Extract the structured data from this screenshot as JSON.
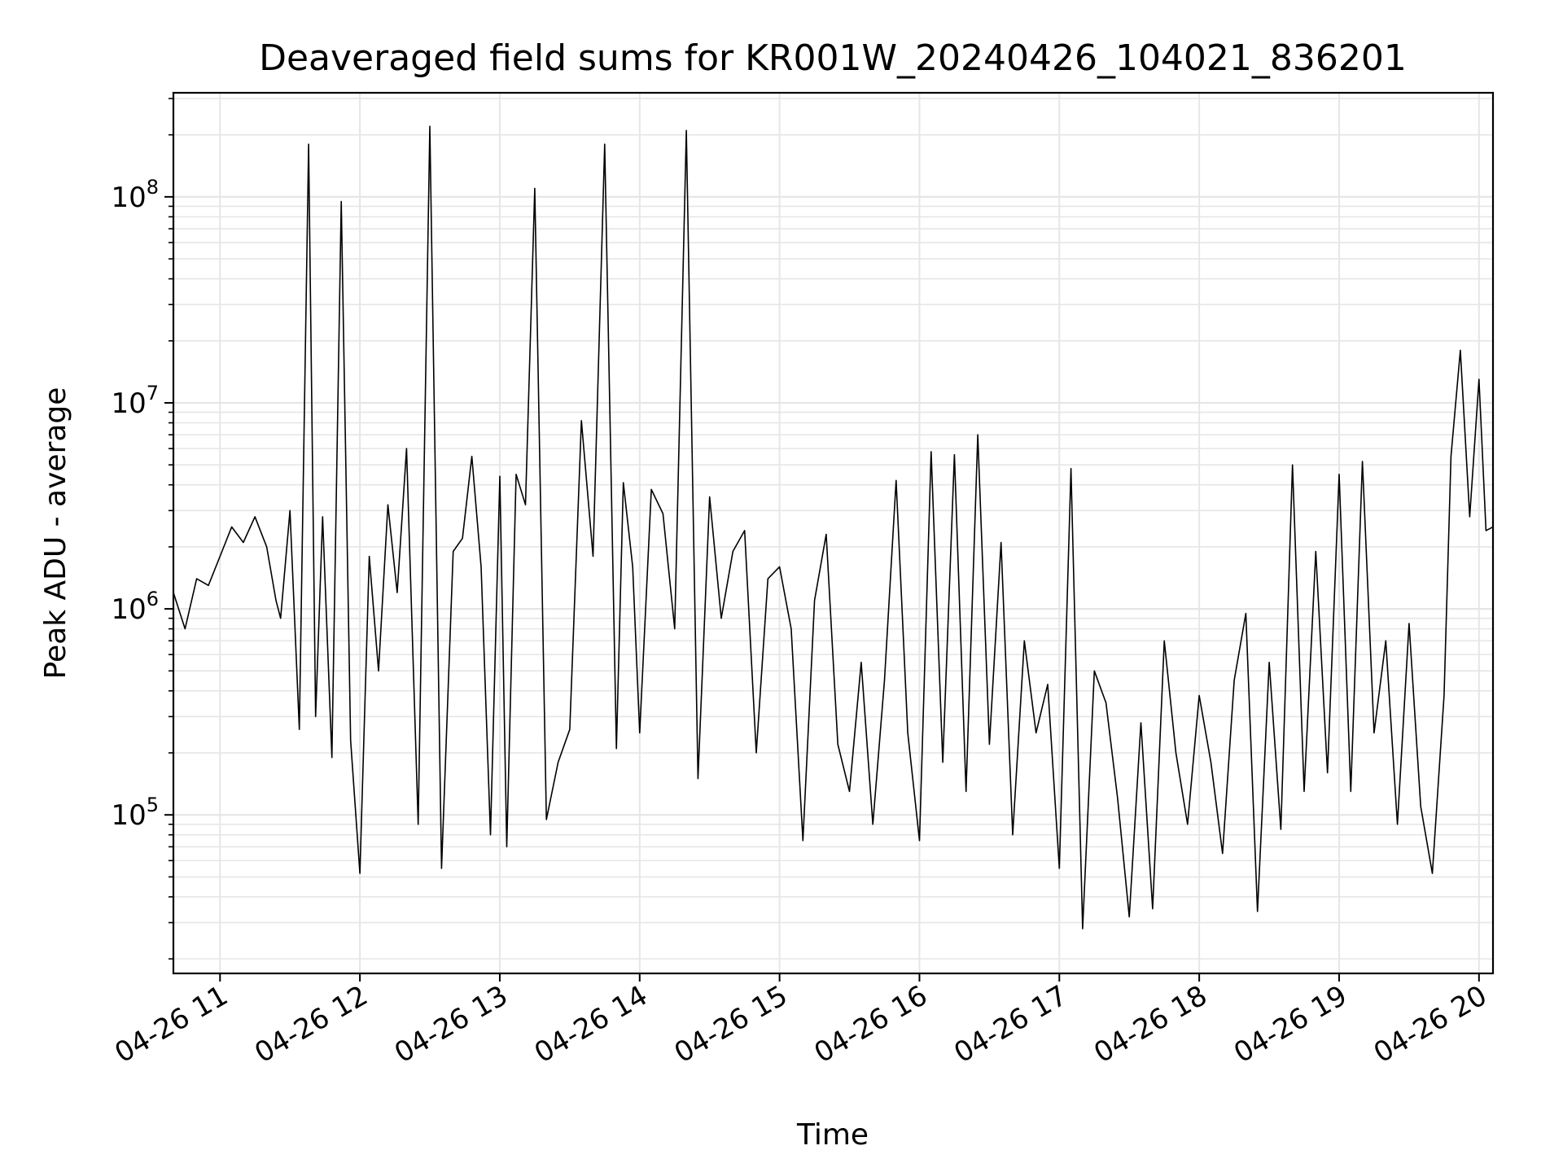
{
  "chart_data": {
    "type": "line",
    "title": "Deaveraged field sums for KR001W_20240426_104021_836201",
    "xlabel": "Time",
    "ylabel": "Peak ADU - average",
    "yscale": "log",
    "xlim": [
      "2024-04-26 10:40",
      "2024-04-26 20:06"
    ],
    "ylim": [
      17000,
      320000000
    ],
    "grid": "major and minor",
    "line_color": "#000000",
    "x_tick_labels": [
      "04-26 11",
      "04-26 12",
      "04-26 13",
      "04-26 14",
      "04-26 15",
      "04-26 16",
      "04-26 17",
      "04-26 18",
      "04-26 19",
      "04-26 20"
    ],
    "y_tick_labels": [
      {
        "value": 100000,
        "base": "10",
        "exp": "5"
      },
      {
        "value": 1000000,
        "base": "10",
        "exp": "6"
      },
      {
        "value": 10000000,
        "base": "10",
        "exp": "7"
      },
      {
        "value": 100000000,
        "base": "10",
        "exp": "8"
      }
    ],
    "series": [
      {
        "x": [
          "2024-04-26 10:40",
          "2024-04-26 10:45",
          "2024-04-26 10:50",
          "2024-04-26 10:55",
          "2024-04-26 11:00",
          "2024-04-26 11:05",
          "2024-04-26 11:10",
          "2024-04-26 11:15",
          "2024-04-26 11:20",
          "2024-04-26 11:24",
          "2024-04-26 11:26",
          "2024-04-26 11:30",
          "2024-04-26 11:34",
          "2024-04-26 11:38",
          "2024-04-26 11:41",
          "2024-04-26 11:44",
          "2024-04-26 11:48",
          "2024-04-26 11:52",
          "2024-04-26 11:56",
          "2024-04-26 12:00",
          "2024-04-26 12:04",
          "2024-04-26 12:08",
          "2024-04-26 12:12",
          "2024-04-26 12:16",
          "2024-04-26 12:20",
          "2024-04-26 12:25",
          "2024-04-26 12:30",
          "2024-04-26 12:35",
          "2024-04-26 12:40",
          "2024-04-26 12:44",
          "2024-04-26 12:48",
          "2024-04-26 12:52",
          "2024-04-26 12:56",
          "2024-04-26 13:00",
          "2024-04-26 13:03",
          "2024-04-26 13:07",
          "2024-04-26 13:11",
          "2024-04-26 13:15",
          "2024-04-26 13:20",
          "2024-04-26 13:25",
          "2024-04-26 13:30",
          "2024-04-26 13:35",
          "2024-04-26 13:40",
          "2024-04-26 13:45",
          "2024-04-26 13:50",
          "2024-04-26 13:53",
          "2024-04-26 13:57",
          "2024-04-26 14:00",
          "2024-04-26 14:05",
          "2024-04-26 14:10",
          "2024-04-26 14:15",
          "2024-04-26 14:20",
          "2024-04-26 14:25",
          "2024-04-26 14:30",
          "2024-04-26 14:35",
          "2024-04-26 14:40",
          "2024-04-26 14:45",
          "2024-04-26 14:50",
          "2024-04-26 14:55",
          "2024-04-26 15:00",
          "2024-04-26 15:05",
          "2024-04-26 15:10",
          "2024-04-26 15:15",
          "2024-04-26 15:20",
          "2024-04-26 15:25",
          "2024-04-26 15:30",
          "2024-04-26 15:35",
          "2024-04-26 15:40",
          "2024-04-26 15:45",
          "2024-04-26 15:50",
          "2024-04-26 15:55",
          "2024-04-26 16:00",
          "2024-04-26 16:05",
          "2024-04-26 16:10",
          "2024-04-26 16:15",
          "2024-04-26 16:20",
          "2024-04-26 16:25",
          "2024-04-26 16:30",
          "2024-04-26 16:35",
          "2024-04-26 16:40",
          "2024-04-26 16:45",
          "2024-04-26 16:50",
          "2024-04-26 16:55",
          "2024-04-26 17:00",
          "2024-04-26 17:05",
          "2024-04-26 17:10",
          "2024-04-26 17:15",
          "2024-04-26 17:20",
          "2024-04-26 17:25",
          "2024-04-26 17:30",
          "2024-04-26 17:35",
          "2024-04-26 17:40",
          "2024-04-26 17:45",
          "2024-04-26 17:50",
          "2024-04-26 17:55",
          "2024-04-26 18:00",
          "2024-04-26 18:05",
          "2024-04-26 18:10",
          "2024-04-26 18:15",
          "2024-04-26 18:20",
          "2024-04-26 18:25",
          "2024-04-26 18:30",
          "2024-04-26 18:35",
          "2024-04-26 18:40",
          "2024-04-26 18:45",
          "2024-04-26 18:50",
          "2024-04-26 18:55",
          "2024-04-26 19:00",
          "2024-04-26 19:05",
          "2024-04-26 19:10",
          "2024-04-26 19:15",
          "2024-04-26 19:20",
          "2024-04-26 19:25",
          "2024-04-26 19:30",
          "2024-04-26 19:35",
          "2024-04-26 19:40",
          "2024-04-26 19:45",
          "2024-04-26 19:48",
          "2024-04-26 19:52",
          "2024-04-26 19:56",
          "2024-04-26 20:00",
          "2024-04-26 20:03",
          "2024-04-26 20:06"
        ],
        "y": [
          1200000,
          800000,
          1400000,
          1300000,
          1800000,
          2500000,
          2100000,
          2800000,
          2000000,
          1100000,
          900000,
          3000000,
          260000,
          180000000,
          300000,
          2800000,
          190000,
          95000000,
          230000,
          52000,
          1800000,
          500000,
          3200000,
          1200000,
          6000000,
          90000,
          220000000,
          55000,
          1900000,
          2200000,
          5500000,
          1600000,
          80000,
          4400000,
          70000,
          4500000,
          3200000,
          110000000,
          95000,
          180000,
          260000,
          8200000,
          1800000,
          180000000,
          210000,
          4100000,
          1600000,
          250000,
          3800000,
          2900000,
          800000,
          210000000,
          150000,
          3500000,
          900000,
          1900000,
          2400000,
          200000,
          1400000,
          1600000,
          800000,
          75000,
          1100000,
          2300000,
          220000,
          130000,
          550000,
          90000,
          450000,
          4200000,
          250000,
          75000,
          5800000,
          180000,
          5600000,
          130000,
          7000000,
          220000,
          2100000,
          80000,
          700000,
          250000,
          430000,
          55000,
          4800000,
          28000,
          500000,
          350000,
          120000,
          32000,
          280000,
          35000,
          700000,
          200000,
          90000,
          380000,
          180000,
          65000,
          450000,
          950000,
          34000,
          550000,
          85000,
          5000000,
          130000,
          1900000,
          160000,
          4500000,
          130000,
          5200000,
          250000,
          700000,
          90000,
          850000,
          110000,
          52000,
          380000,
          5500000,
          18000000,
          2800000,
          13000000,
          2400000,
          2500000
        ]
      }
    ]
  }
}
